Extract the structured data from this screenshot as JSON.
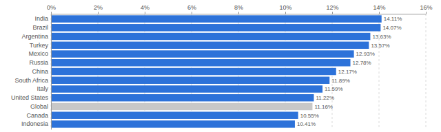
{
  "chart_data": {
    "type": "bar",
    "orientation": "horizontal",
    "categories": [
      "India",
      "Brazil",
      "Argentina",
      "Turkey",
      "Mexico",
      "Russia",
      "China",
      "South Africa",
      "Italy",
      "United States",
      "Global",
      "Canada",
      "Indonesia"
    ],
    "values": [
      14.11,
      14.07,
      13.63,
      13.57,
      12.93,
      12.78,
      12.17,
      11.89,
      11.59,
      11.22,
      11.16,
      10.55,
      10.41
    ],
    "value_labels": [
      "14.11%",
      "14.07%",
      "13.63%",
      "13.57%",
      "12.93%",
      "12.78%",
      "12.17%",
      "11.89%",
      "11.59%",
      "11.22%",
      "11.16%",
      "10.55%",
      "10.41%"
    ],
    "data_labels": true,
    "colors": [
      "#2d72d9",
      "#2d72d9",
      "#2d72d9",
      "#2d72d9",
      "#2d72d9",
      "#2d72d9",
      "#2d72d9",
      "#2d72d9",
      "#2d72d9",
      "#2d72d9",
      "#c8c8c8",
      "#2d72d9",
      "#2d72d9"
    ],
    "xlim": [
      0,
      16
    ],
    "xticks": [
      {
        "value": 0,
        "label": "0%"
      },
      {
        "value": 2,
        "label": "2%"
      },
      {
        "value": 4,
        "label": "4%"
      },
      {
        "value": 6,
        "label": "6%"
      },
      {
        "value": 8,
        "label": "8%"
      },
      {
        "value": 10,
        "label": "10%"
      },
      {
        "value": 12,
        "label": "12%"
      },
      {
        "value": 14,
        "label": "14%"
      },
      {
        "value": 16,
        "label": "16%"
      }
    ],
    "grid": true
  }
}
